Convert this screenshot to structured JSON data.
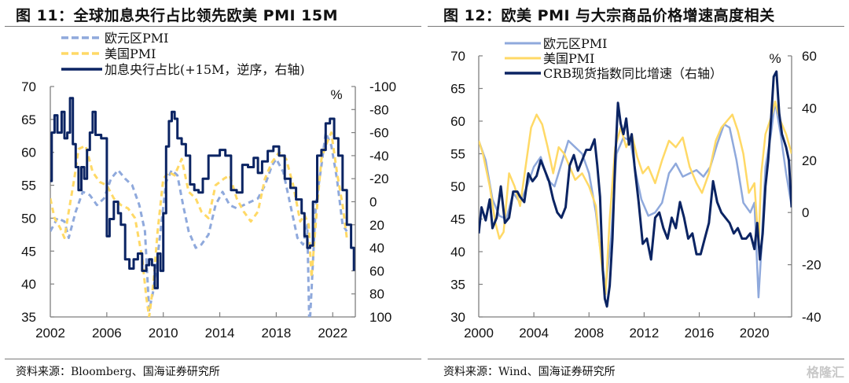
{
  "colors": {
    "euro_pmi": "#8fa9dc",
    "us_pmi": "#ffd966",
    "navy": "#0b2463",
    "axis": "#7f7f7f",
    "rule": "#7a7a7a"
  },
  "left": {
    "title": "图 11：全球加息央行占比领先欧美 PMI 15M",
    "source": "资料来源：Bloomberg、国海证券研究所",
    "percent_label": "%"
  },
  "right": {
    "title": "图 12：欧美 PMI 与大宗商品价格增速高度相关",
    "source": "资料来源：Wind、国海证券研究所",
    "percent_label": "%"
  },
  "watermark": "格隆汇",
  "chart_data": [
    {
      "type": "line",
      "title": "图 11：全球加息央行占比领先欧美 PMI 15M",
      "xlabel": "",
      "ylabel": "",
      "xlim": [
        2002,
        2023.6
      ],
      "ylim": [
        35,
        70
      ],
      "y2lim": [
        100,
        -100
      ],
      "y2_inverted": true,
      "y2_unit": "%",
      "x_ticks": [
        "2002",
        "2006",
        "2010",
        "2014",
        "2018",
        "2022"
      ],
      "y_ticks": [
        "70",
        "65",
        "60",
        "55",
        "50",
        "45",
        "40",
        "35"
      ],
      "y2_ticks": [
        "-100",
        "-80",
        "-60",
        "-40",
        "-20",
        "0",
        "20",
        "40",
        "60",
        "80",
        "100"
      ],
      "legend_position": "top-left",
      "series": [
        {
          "name": "欧元区PMI",
          "style": "dashed",
          "axis": "left",
          "x": [
            2002.0,
            2002.5,
            2003.0,
            2003.3,
            2003.8,
            2004.3,
            2004.8,
            2005.3,
            2005.8,
            2006.3,
            2006.8,
            2007.3,
            2007.8,
            2008.3,
            2008.7,
            2009.0,
            2009.3,
            2009.7,
            2010.2,
            2010.6,
            2011.0,
            2011.4,
            2011.8,
            2012.3,
            2012.7,
            2013.2,
            2013.7,
            2014.2,
            2014.7,
            2015.2,
            2015.7,
            2016.2,
            2016.7,
            2017.2,
            2017.7,
            2018.0,
            2018.5,
            2019.0,
            2019.5,
            2019.9,
            2020.2,
            2020.35,
            2020.5,
            2020.8,
            2021.2,
            2021.5,
            2021.9,
            2022.3,
            2022.7,
            2023.0
          ],
          "values": [
            48,
            50,
            49.5,
            47,
            51,
            54,
            53.5,
            52,
            53,
            56,
            57.3,
            56,
            55,
            52,
            48,
            36,
            39,
            46,
            55.5,
            57.3,
            56.5,
            52,
            48,
            45.5,
            46,
            47.5,
            52,
            54,
            52,
            51.5,
            52,
            52.5,
            53,
            55,
            58,
            59,
            57,
            52,
            47,
            46,
            49,
            33,
            39,
            52,
            58,
            63,
            61,
            56,
            49,
            48
          ]
        },
        {
          "name": "美国PMI",
          "style": "dashed",
          "axis": "left",
          "x": [
            2002.0,
            2002.3,
            2002.7,
            2003.0,
            2003.3,
            2003.7,
            2004.0,
            2004.5,
            2005.0,
            2005.5,
            2006.0,
            2006.5,
            2007.0,
            2007.5,
            2008.0,
            2008.5,
            2008.8,
            2009.0,
            2009.3,
            2009.6,
            2010.0,
            2010.4,
            2010.8,
            2011.3,
            2011.8,
            2012.3,
            2012.7,
            2013.2,
            2013.7,
            2014.3,
            2014.7,
            2015.2,
            2015.7,
            2016.2,
            2016.7,
            2017.2,
            2017.7,
            2018.2,
            2018.7,
            2019.2,
            2019.7,
            2020.0,
            2020.3,
            2020.5,
            2020.9,
            2021.2,
            2021.5,
            2021.9,
            2022.3,
            2022.7,
            2023.0
          ],
          "values": [
            53,
            50,
            48.5,
            47,
            51,
            56,
            60.5,
            61,
            57,
            55.5,
            55,
            53,
            52,
            51.5,
            50,
            44,
            38,
            35,
            40,
            48,
            56,
            57,
            56.5,
            59,
            54,
            53,
            51,
            50,
            55,
            56,
            56.5,
            53,
            51,
            49.5,
            51,
            56,
            58.5,
            60,
            59,
            55,
            49.5,
            50.5,
            49,
            41,
            52,
            59,
            61,
            63,
            57,
            52,
            47
          ]
        },
        {
          "name": "加息央行占比(+15M，逆序，右轴)",
          "style": "solid",
          "axis": "right",
          "x": [
            2002.0,
            2002.1,
            2002.3,
            2002.5,
            2002.8,
            2003.0,
            2003.2,
            2003.4,
            2003.6,
            2003.8,
            2004.0,
            2004.2,
            2004.4,
            2004.6,
            2004.8,
            2005.0,
            2005.2,
            2005.4,
            2005.6,
            2005.8,
            2006.0,
            2006.2,
            2006.5,
            2006.8,
            2007.0,
            2007.3,
            2007.6,
            2007.9,
            2008.2,
            2008.5,
            2008.8,
            2009.0,
            2009.2,
            2009.4,
            2009.6,
            2009.8,
            2010.0,
            2010.2,
            2010.4,
            2010.6,
            2010.8,
            2011.0,
            2011.3,
            2011.6,
            2011.9,
            2012.2,
            2012.5,
            2012.8,
            2013.2,
            2013.6,
            2014.0,
            2014.4,
            2014.8,
            2015.2,
            2015.6,
            2016.0,
            2016.4,
            2016.7,
            2017.0,
            2017.4,
            2017.8,
            2018.2,
            2018.6,
            2019.0,
            2019.4,
            2019.8,
            2020.0,
            2020.2,
            2020.4,
            2020.6,
            2020.9,
            2021.2,
            2021.5,
            2021.8,
            2022.1,
            2022.4,
            2022.7,
            2023.0,
            2023.3,
            2023.5
          ],
          "values": [
            -18,
            -60,
            -75,
            -60,
            -78,
            -55,
            -60,
            -90,
            -50,
            -30,
            -10,
            -30,
            -20,
            -45,
            -60,
            -78,
            -58,
            -58,
            -55,
            -55,
            30,
            15,
            0,
            10,
            20,
            50,
            58,
            50,
            45,
            60,
            55,
            50,
            55,
            75,
            45,
            60,
            10,
            -48,
            -70,
            -78,
            -72,
            -55,
            -50,
            -40,
            -15,
            -10,
            -8,
            -20,
            -40,
            -40,
            -45,
            -40,
            -10,
            -8,
            -32,
            -30,
            -38,
            -25,
            -35,
            -44,
            -48,
            -40,
            -20,
            -12,
            -2,
            10,
            30,
            40,
            38,
            0,
            -40,
            -45,
            -68,
            -72,
            -55,
            -40,
            -10,
            20,
            40,
            60
          ]
        }
      ]
    },
    {
      "type": "line",
      "title": "图 12：欧美 PMI 与大宗商品价格增速高度相关",
      "xlabel": "",
      "ylabel": "",
      "xlim": [
        2000,
        2022.7
      ],
      "ylim": [
        30,
        70
      ],
      "y2lim": [
        -40,
        60
      ],
      "y2_unit": "%",
      "x_ticks": [
        "2000",
        "2004",
        "2008",
        "2012",
        "2016",
        "2020"
      ],
      "y_ticks": [
        "70",
        "65",
        "60",
        "55",
        "50",
        "45",
        "40",
        "35",
        "30"
      ],
      "y2_ticks": [
        "60",
        "40",
        "20",
        "0",
        "-20",
        "-40"
      ],
      "legend_position": "top-left",
      "series": [
        {
          "name": "欧元区PMI",
          "style": "solid",
          "axis": "left",
          "x": [
            2000.0,
            2000.5,
            2001.0,
            2001.5,
            2002.0,
            2002.5,
            2003.0,
            2003.5,
            2004.0,
            2004.5,
            2005.0,
            2005.5,
            2006.0,
            2006.5,
            2007.0,
            2007.5,
            2008.0,
            2008.5,
            2008.9,
            2009.2,
            2009.6,
            2010.0,
            2010.5,
            2011.0,
            2011.4,
            2011.8,
            2012.3,
            2012.8,
            2013.3,
            2013.8,
            2014.3,
            2014.8,
            2015.3,
            2015.8,
            2016.3,
            2016.8,
            2017.3,
            2017.8,
            2018.2,
            2018.7,
            2019.2,
            2019.7,
            2020.0,
            2020.3,
            2020.5,
            2020.8,
            2021.2,
            2021.5,
            2021.9,
            2022.3,
            2022.7
          ],
          "values": [
            57,
            54,
            48,
            45.5,
            45,
            49,
            47.5,
            50,
            53,
            54.5,
            51,
            50,
            53.5,
            57,
            56,
            55,
            52,
            46,
            39,
            34.5,
            42,
            55,
            57.5,
            57,
            52,
            48,
            45.5,
            46,
            47.5,
            52,
            53.5,
            51.5,
            52,
            52.5,
            51.5,
            53,
            56.5,
            59.5,
            59,
            54,
            47.5,
            46,
            47.5,
            33,
            40,
            53,
            58,
            63,
            58,
            52,
            47
          ]
        },
        {
          "name": "美国PMI",
          "style": "solid",
          "axis": "left",
          "x": [
            2000.0,
            2000.3,
            2000.8,
            2001.2,
            2001.5,
            2001.8,
            2002.2,
            2002.6,
            2003.0,
            2003.4,
            2003.8,
            2004.2,
            2004.6,
            2005.0,
            2005.4,
            2005.8,
            2006.2,
            2006.6,
            2007.0,
            2007.5,
            2008.0,
            2008.5,
            2008.9,
            2009.2,
            2009.5,
            2009.9,
            2010.3,
            2010.7,
            2011.1,
            2011.5,
            2011.9,
            2012.3,
            2012.8,
            2013.3,
            2013.8,
            2014.3,
            2014.8,
            2015.3,
            2015.8,
            2016.2,
            2016.7,
            2017.2,
            2017.6,
            2018.0,
            2018.4,
            2018.8,
            2019.2,
            2019.6,
            2020.0,
            2020.3,
            2020.5,
            2020.8,
            2021.2,
            2021.5,
            2021.9,
            2022.3,
            2022.7
          ],
          "values": [
            57,
            55,
            50,
            44.5,
            42,
            43,
            52,
            50,
            47,
            53,
            59,
            61,
            59.5,
            56,
            52,
            56,
            55,
            53,
            51,
            52,
            50,
            47,
            38.5,
            33.5,
            45,
            56,
            59,
            56,
            58,
            54.5,
            52,
            53,
            50.5,
            54,
            57,
            56,
            57.5,
            53,
            50.5,
            49,
            52,
            57,
            59,
            60,
            61,
            58.5,
            55,
            49,
            50.5,
            41,
            52,
            58,
            60.5,
            63,
            60,
            58,
            55
          ]
        },
        {
          "name": "CRB现货指数同比增速（右轴）",
          "style": "solid",
          "axis": "right",
          "x": [
            2000.0,
            2000.2,
            2000.5,
            2000.8,
            2001.0,
            2001.3,
            2001.6,
            2001.9,
            2002.2,
            2002.5,
            2002.8,
            2003.0,
            2003.3,
            2003.6,
            2003.9,
            2004.2,
            2004.5,
            2004.8,
            2005.1,
            2005.4,
            2005.7,
            2006.0,
            2006.3,
            2006.6,
            2006.9,
            2007.2,
            2007.5,
            2007.8,
            2008.1,
            2008.4,
            2008.6,
            2008.8,
            2009.0,
            2009.15,
            2009.3,
            2009.5,
            2009.7,
            2009.9,
            2010.1,
            2010.3,
            2010.5,
            2010.7,
            2010.9,
            2011.1,
            2011.3,
            2011.6,
            2011.9,
            2012.2,
            2012.5,
            2012.8,
            2013.1,
            2013.4,
            2013.7,
            2014.0,
            2014.3,
            2014.6,
            2014.9,
            2015.2,
            2015.5,
            2015.8,
            2016.1,
            2016.4,
            2016.7,
            2017.0,
            2017.3,
            2017.6,
            2017.9,
            2018.2,
            2018.5,
            2018.8,
            2019.1,
            2019.4,
            2019.7,
            2020.0,
            2020.2,
            2020.4,
            2020.6,
            2020.8,
            2021.0,
            2021.2,
            2021.4,
            2021.6,
            2021.8,
            2022.0,
            2022.3,
            2022.5,
            2022.7
          ],
          "values": [
            -8,
            2,
            -3,
            5,
            -6,
            -2,
            10,
            -4,
            -2,
            8,
            8,
            6,
            4,
            15,
            12,
            14,
            20,
            16,
            12,
            5,
            0,
            -2,
            2,
            18,
            22,
            16,
            20,
            24,
            24,
            28,
            18,
            6,
            -22,
            -33,
            -36,
            -28,
            -10,
            20,
            42,
            34,
            30,
            36,
            26,
            30,
            18,
            4,
            -12,
            -10,
            -18,
            -2,
            0,
            -6,
            -10,
            -2,
            -6,
            4,
            -2,
            -10,
            -8,
            -16,
            -16,
            -10,
            -4,
            12,
            4,
            0,
            -2,
            -4,
            -8,
            -6,
            -10,
            -10,
            -8,
            -14,
            -4,
            -18,
            -8,
            10,
            20,
            35,
            52,
            54,
            38,
            30,
            25,
            20,
            2
          ]
        }
      ]
    }
  ]
}
